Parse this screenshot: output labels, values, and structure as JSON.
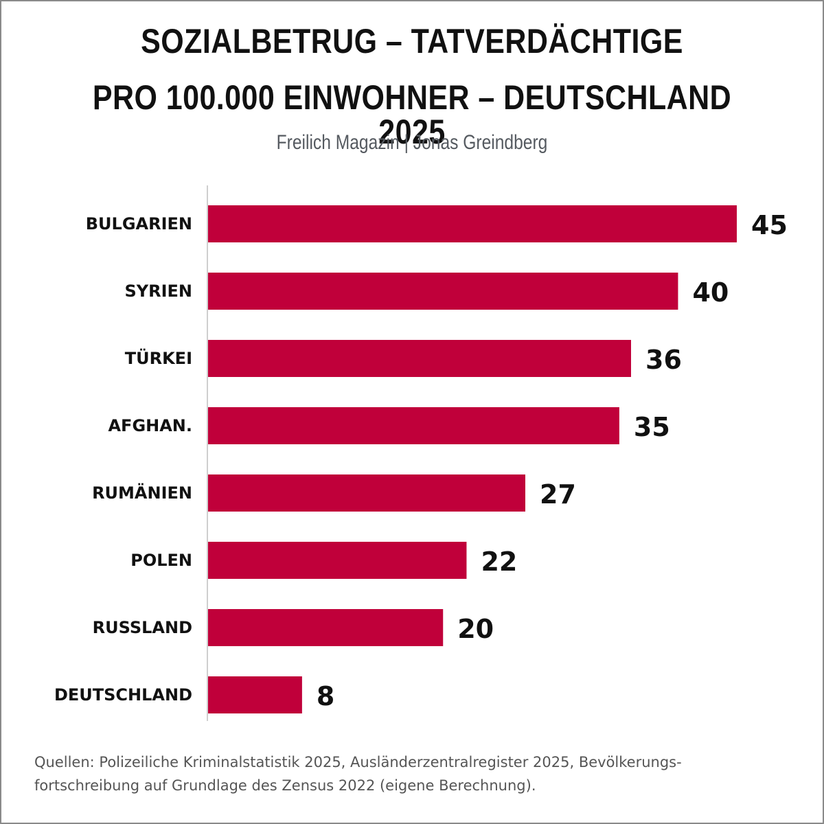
{
  "chart_data": {
    "type": "bar",
    "orientation": "horizontal",
    "title_line1": "SOZIALBETRUG – TATVERDÄCHTIGE",
    "title_line2": "PRO 100.000 EINWOHNER – DEUTSCHLAND 2025",
    "subtitle": "Freilich Magazin | Jonas Greindberg",
    "categories": [
      "BULGARIEN",
      "SYRIEN",
      "TÜRKEI",
      "AFGHAN.",
      "RUMÄNIEN",
      "POLEN",
      "RUSSLAND",
      "DEUTSCHLAND"
    ],
    "values": [
      45,
      40,
      36,
      35,
      27,
      22,
      20,
      8
    ],
    "xlim": [
      0,
      45
    ],
    "grid": false,
    "legend": "none",
    "colors": {
      "bar": "#c0003a",
      "axis": "#cfcfcf",
      "text": "#111111"
    },
    "source_line1": "Quellen: Polizeiliche Kriminalstatistik 2025, Ausländerzentralregister 2025, Bevölkerungs-",
    "source_line2": "fortschreibung auf Grundlage des Zensus 2022 (eigene Berechnung)."
  }
}
